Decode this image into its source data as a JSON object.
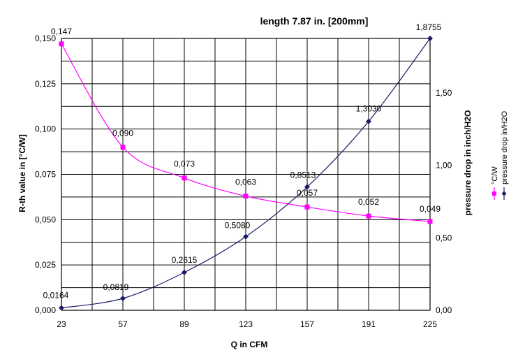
{
  "chart_data": {
    "type": "line",
    "title": "length 7.87 in. [200mm]",
    "xlabel": "Q in CFM",
    "ylabel": "R-th value in [°C/W]",
    "y2label": "pressure drop in inch/H2O",
    "categories": [
      "23",
      "57",
      "89",
      "123",
      "157",
      "191",
      "225"
    ],
    "x": [
      23,
      57,
      89,
      123,
      157,
      191,
      225
    ],
    "ylim": [
      0,
      0.15
    ],
    "y2lim": [
      0,
      1.8755
    ],
    "yticks": [
      "0,000",
      "0,025",
      "0,050",
      "0,075",
      "0,100",
      "0,125",
      "0,150"
    ],
    "yticks_values": [
      0,
      0.025,
      0.05,
      0.075,
      0.1,
      0.125,
      0.15
    ],
    "y2ticks": [
      "0,00",
      "0,50",
      "1,00",
      "1,50"
    ],
    "y2ticks_values": [
      0,
      0.5,
      1.0,
      1.5
    ],
    "grid": true,
    "legend_position": "right",
    "series": [
      {
        "name": "°C/W",
        "axis": "left",
        "color": "#ff00ff",
        "marker": "square",
        "values": [
          0.147,
          0.09,
          0.073,
          0.063,
          0.057,
          0.052,
          0.049
        ],
        "labels": [
          "0,147",
          "0,090",
          "0,073",
          "0,063",
          "0,057",
          "0,052",
          "0,049"
        ]
      },
      {
        "name": "pressure drop in/H2O",
        "axis": "right",
        "color": "#1a1a66",
        "marker": "diamond",
        "values": [
          0.0164,
          0.0819,
          0.2615,
          0.508,
          0.8513,
          1.303,
          1.8755
        ],
        "labels": [
          "0,0164",
          "0,0819",
          "0,2615",
          "0,5080",
          "0,8513",
          "1,3030",
          "1,8755"
        ]
      }
    ]
  }
}
